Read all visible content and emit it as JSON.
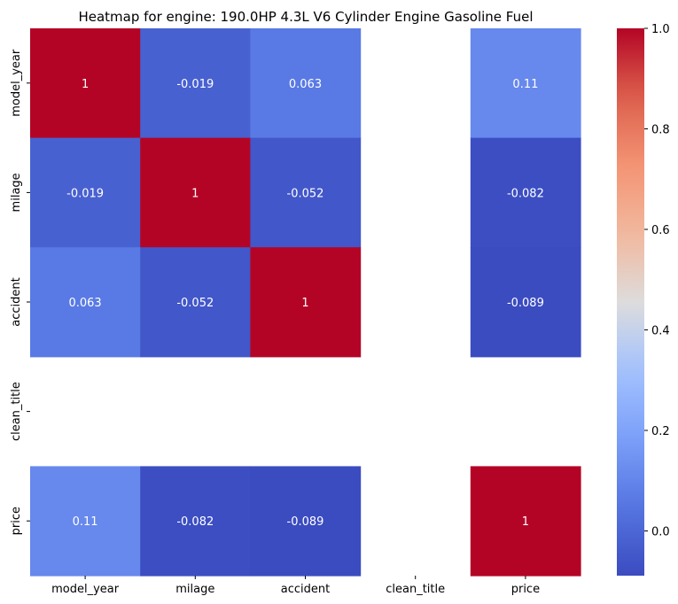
{
  "chart_data": {
    "type": "heatmap",
    "title": "Heatmap for engine: 190.0HP 4.3L V6 Cylinder Engine Gasoline Fuel",
    "xlabels": [
      "model_year",
      "milage",
      "accident",
      "clean_title",
      "price"
    ],
    "ylabels": [
      "model_year",
      "milage",
      "accident",
      "clean_title",
      "price"
    ],
    "matrix": [
      [
        1,
        -0.019,
        0.063,
        null,
        0.11
      ],
      [
        -0.019,
        1,
        -0.052,
        null,
        -0.082
      ],
      [
        0.063,
        -0.052,
        1,
        null,
        -0.089
      ],
      [
        null,
        null,
        null,
        null,
        null
      ],
      [
        0.11,
        -0.082,
        -0.089,
        null,
        1
      ]
    ],
    "cell_labels": [
      [
        "1",
        "-0.019",
        "0.063",
        "",
        "0.11"
      ],
      [
        "-0.019",
        "1",
        "-0.052",
        "",
        "-0.082"
      ],
      [
        "0.063",
        "-0.052",
        "1",
        "",
        "-0.089"
      ],
      [
        "",
        "",
        "",
        "",
        ""
      ],
      [
        "0.11",
        "-0.082",
        "-0.089",
        "",
        "1"
      ]
    ],
    "colorbar": {
      "colormap": "coolwarm",
      "vmin": -0.089,
      "vmax": 1.0,
      "ticks": [
        0.0,
        0.2,
        0.4,
        0.6,
        0.8,
        1.0
      ],
      "tick_labels": [
        "0.0",
        "0.2",
        "0.4",
        "0.6",
        "0.8",
        "1.0"
      ]
    }
  }
}
